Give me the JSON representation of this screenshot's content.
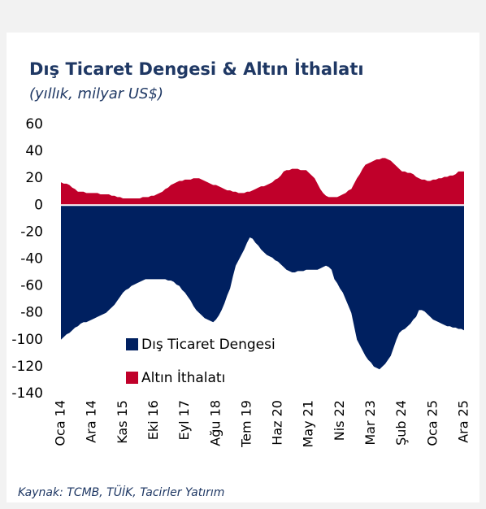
{
  "chart_data": {
    "type": "area",
    "title": "Dış Ticaret Dengesi & Altın İthalatı",
    "subtitle": "(yıllık, milyar US$)",
    "source": "Kaynak: TCMB, TÜİK, Tacirler Yatırım",
    "categories": [
      "Oca 14",
      null,
      null,
      null,
      null,
      null,
      null,
      null,
      null,
      null,
      null,
      "Ara 14",
      null,
      null,
      null,
      null,
      null,
      null,
      null,
      null,
      null,
      null,
      "Kas 15",
      null,
      null,
      null,
      null,
      null,
      null,
      null,
      null,
      null,
      null,
      "Eki 16",
      null,
      null,
      null,
      null,
      null,
      null,
      null,
      null,
      null,
      null,
      "Eyl 17",
      null,
      null,
      null,
      null,
      null,
      null,
      null,
      null,
      null,
      null,
      "Ağu 18",
      null,
      null,
      null,
      null,
      null,
      null,
      null,
      null,
      null,
      null,
      "Tem 19",
      null,
      null,
      null,
      null,
      null,
      null,
      null,
      null,
      null,
      null,
      "Haz 20",
      null,
      null,
      null,
      null,
      null,
      null,
      null,
      null,
      null,
      null,
      "May 21",
      null,
      null,
      null,
      null,
      null,
      null,
      null,
      null,
      null,
      null,
      "Nis 22",
      null,
      null,
      null,
      null,
      null,
      null,
      null,
      null,
      null,
      null,
      "Mar 23",
      null,
      null,
      null,
      null,
      null,
      null,
      null,
      null,
      null,
      null,
      "Şub 24",
      null,
      null,
      null,
      null,
      null,
      null,
      null,
      null,
      null,
      null,
      "Oca 25",
      null,
      null,
      null,
      null,
      null,
      null,
      null,
      null,
      null,
      null,
      "Ara 25"
    ],
    "series": [
      {
        "name": "Dış Ticaret Dengesi",
        "color": "#002060",
        "values": [
          -100,
          -98,
          -96,
          -95,
          -93,
          -91,
          -90,
          -88,
          -87,
          -87,
          -86,
          -85,
          -84,
          -83,
          -82,
          -81,
          -80,
          -78,
          -76,
          -74,
          -71,
          -68,
          -65,
          -63,
          -62,
          -60,
          -59,
          -58,
          -57,
          -56,
          -55,
          -55,
          -55,
          -55,
          -55,
          -55,
          -55,
          -55,
          -56,
          -56,
          -57,
          -59,
          -60,
          -63,
          -65,
          -68,
          -71,
          -75,
          -78,
          -80,
          -82,
          -84,
          -85,
          -86,
          -87,
          -85,
          -82,
          -78,
          -73,
          -67,
          -62,
          -53,
          -45,
          -41,
          -37,
          -33,
          -28,
          -24,
          -25,
          -28,
          -30,
          -33,
          -35,
          -37,
          -38,
          -39,
          -41,
          -42,
          -44,
          -46,
          -48,
          -49,
          -50,
          -50,
          -49,
          -49,
          -49,
          -48,
          -48,
          -48,
          -48,
          -48,
          -47,
          -46,
          -45,
          -46,
          -48,
          -55,
          -58,
          -62,
          -65,
          -70,
          -75,
          -80,
          -90,
          -100,
          -104,
          -108,
          -112,
          -115,
          -117,
          -120,
          -121,
          -122,
          -120,
          -118,
          -115,
          -112,
          -106,
          -100,
          -95,
          -93,
          -92,
          -90,
          -88,
          -85,
          -83,
          -78,
          -78,
          -79,
          -81,
          -83,
          -85,
          -86,
          -87,
          -88,
          -89,
          -90,
          -90,
          -91,
          -91,
          -92,
          -92,
          -93
        ]
      },
      {
        "name": "Altın İthalatı",
        "color": "#c0002a",
        "values": [
          17,
          16,
          16,
          15,
          13,
          12,
          10,
          10,
          10,
          9,
          9,
          9,
          9,
          9,
          8,
          8,
          8,
          8,
          7,
          7,
          6,
          6,
          5,
          5,
          5,
          5,
          5,
          5,
          5,
          6,
          6,
          6,
          7,
          7,
          8,
          9,
          10,
          12,
          13,
          15,
          16,
          17,
          18,
          18,
          19,
          19,
          19,
          20,
          20,
          20,
          19,
          18,
          17,
          16,
          15,
          15,
          14,
          13,
          12,
          11,
          11,
          10,
          10,
          9,
          9,
          9,
          10,
          10,
          11,
          12,
          13,
          14,
          14,
          15,
          16,
          17,
          19,
          20,
          22,
          25,
          26,
          26,
          27,
          27,
          27,
          26,
          26,
          26,
          24,
          22,
          20,
          16,
          12,
          9,
          7,
          6,
          6,
          6,
          6,
          7,
          8,
          9,
          11,
          12,
          16,
          20,
          23,
          27,
          30,
          31,
          32,
          33,
          34,
          34,
          35,
          35,
          34,
          33,
          31,
          29,
          27,
          25,
          25,
          24,
          24,
          23,
          21,
          20,
          19,
          19,
          18,
          18,
          19,
          19,
          20,
          20,
          21,
          21,
          22,
          22,
          23,
          25,
          25,
          25
        ]
      }
    ],
    "ylim": [
      -140,
      60
    ],
    "yticks": [
      60,
      40,
      20,
      0,
      -20,
      -40,
      -60,
      -80,
      -100,
      -120,
      -140
    ]
  }
}
